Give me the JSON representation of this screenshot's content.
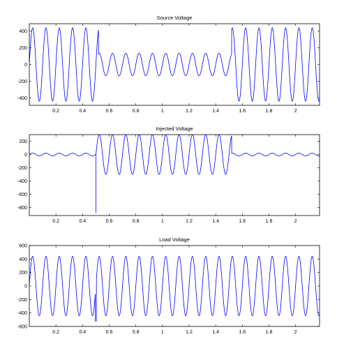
{
  "chart_data": [
    {
      "type": "line",
      "title": "Source Voltage",
      "xlabel": "",
      "ylabel": "",
      "xlim": [
        0,
        2.18
      ],
      "ylim": [
        -490,
        490
      ],
      "xticks": [
        0.2,
        0.4,
        0.6,
        0.8,
        1,
        1.2,
        1.4,
        1.6,
        1.8,
        2
      ],
      "xtick_labels": [
        "0.2",
        "0.4",
        "0.6",
        "0.8",
        "1",
        "1.2",
        "1.4",
        "1.6",
        "1.8",
        "2"
      ],
      "yticks": [
        400,
        200,
        0,
        -200,
        -400
      ],
      "ytick_labels": [
        "400",
        "200",
        "0",
        "-200",
        "-400"
      ],
      "grid": false,
      "line_color": "#0000ff",
      "frequency_hz": 10,
      "segments": [
        {
          "x_start": 0,
          "x_end": 0.52,
          "amplitude": 440
        },
        {
          "x_start": 0.52,
          "x_end": 1.52,
          "amplitude": 135
        },
        {
          "x_start": 1.52,
          "x_end": 2.18,
          "amplitude": 440
        }
      ]
    },
    {
      "type": "line",
      "title": "Injected Voltage",
      "xlabel": "",
      "ylabel": "",
      "xlim": [
        0,
        2.18
      ],
      "ylim": [
        -920,
        300
      ],
      "xticks": [
        0.2,
        0.4,
        0.6,
        0.8,
        1,
        1.2,
        1.4,
        1.6,
        1.8,
        2
      ],
      "xtick_labels": [
        "0.2",
        "0.4",
        "0.6",
        "0.8",
        "1",
        "1.2",
        "1.4",
        "1.6",
        "1.8",
        "2"
      ],
      "yticks": [
        200,
        0,
        -200,
        -400,
        -600,
        -800
      ],
      "ytick_labels": [
        "200",
        "0",
        "-200",
        "-400",
        "-600",
        "-800"
      ],
      "grid": false,
      "line_color": "#0000ff",
      "frequency_hz": 10,
      "segments": [
        {
          "x_start": 0,
          "x_end": 0.5,
          "amplitude": 20
        },
        {
          "x_start": 0.5,
          "x_end": 1.52,
          "amplitude": 300
        },
        {
          "x_start": 1.52,
          "x_end": 2.18,
          "amplitude": 20
        }
      ],
      "spike": {
        "x": 0.5,
        "y": -880
      }
    },
    {
      "type": "line",
      "title": "Load Voltage",
      "xlabel": "",
      "ylabel": "",
      "xlim": [
        0,
        2.18
      ],
      "ylim": [
        -600,
        600
      ],
      "xticks": [
        0.2,
        0.4,
        0.6,
        0.8,
        1,
        1.2,
        1.4,
        1.6,
        1.8,
        2
      ],
      "xtick_labels": [
        "0.2",
        "0.4",
        "0.6",
        "0.8",
        "1",
        "1.2",
        "1.4",
        "1.6",
        "1.8",
        "2"
      ],
      "yticks": [
        600,
        400,
        200,
        0,
        -200,
        -400,
        -600
      ],
      "ytick_labels": [
        "600",
        "400",
        "200",
        "0",
        "-200",
        "-400",
        "-600"
      ],
      "grid": false,
      "line_color": "#0000ff",
      "frequency_hz": 10,
      "segments": [
        {
          "x_start": 0,
          "x_end": 2.18,
          "amplitude": 440
        }
      ],
      "dip": {
        "x": 0.5,
        "y": -520
      }
    }
  ]
}
